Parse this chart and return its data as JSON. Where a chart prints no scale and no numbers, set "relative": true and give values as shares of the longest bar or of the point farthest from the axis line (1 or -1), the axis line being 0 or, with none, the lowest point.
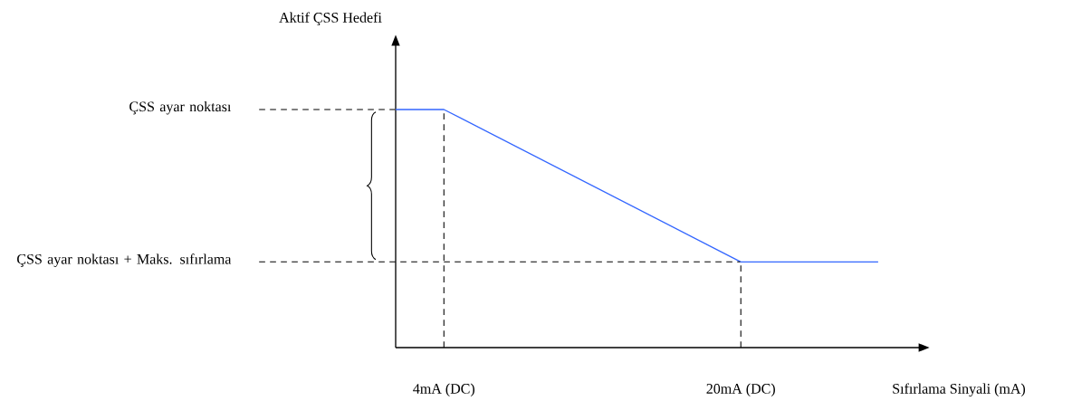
{
  "chart_data": {
    "type": "line",
    "relative": true,
    "xlabel": "Sıfırlama Sinyali (mA)",
    "annotations": [
      "Aktif ÇSS Hedefi",
      "ÇSS ayar noktası",
      "ÇSS ayar noktası + Maks. sıfırlama"
    ],
    "xlim": [
      1.4,
      29.6
    ],
    "xticks": [
      {
        "value": 4,
        "label": "4mA (DC)"
      },
      {
        "value": 20,
        "label": "20mA (DC)"
      }
    ],
    "x": [
      1.4,
      4,
      20,
      27.4
    ],
    "series": [
      {
        "color": "#3366ff",
        "values": [
          1,
          1,
          0.36,
          0.36
        ]
      }
    ],
    "ref_lines": [
      {
        "axis": "x",
        "value": 4,
        "line_style": "dashed"
      },
      {
        "axis": "x",
        "value": 20,
        "line_style": "dashed"
      }
    ],
    "marker": "none"
  }
}
